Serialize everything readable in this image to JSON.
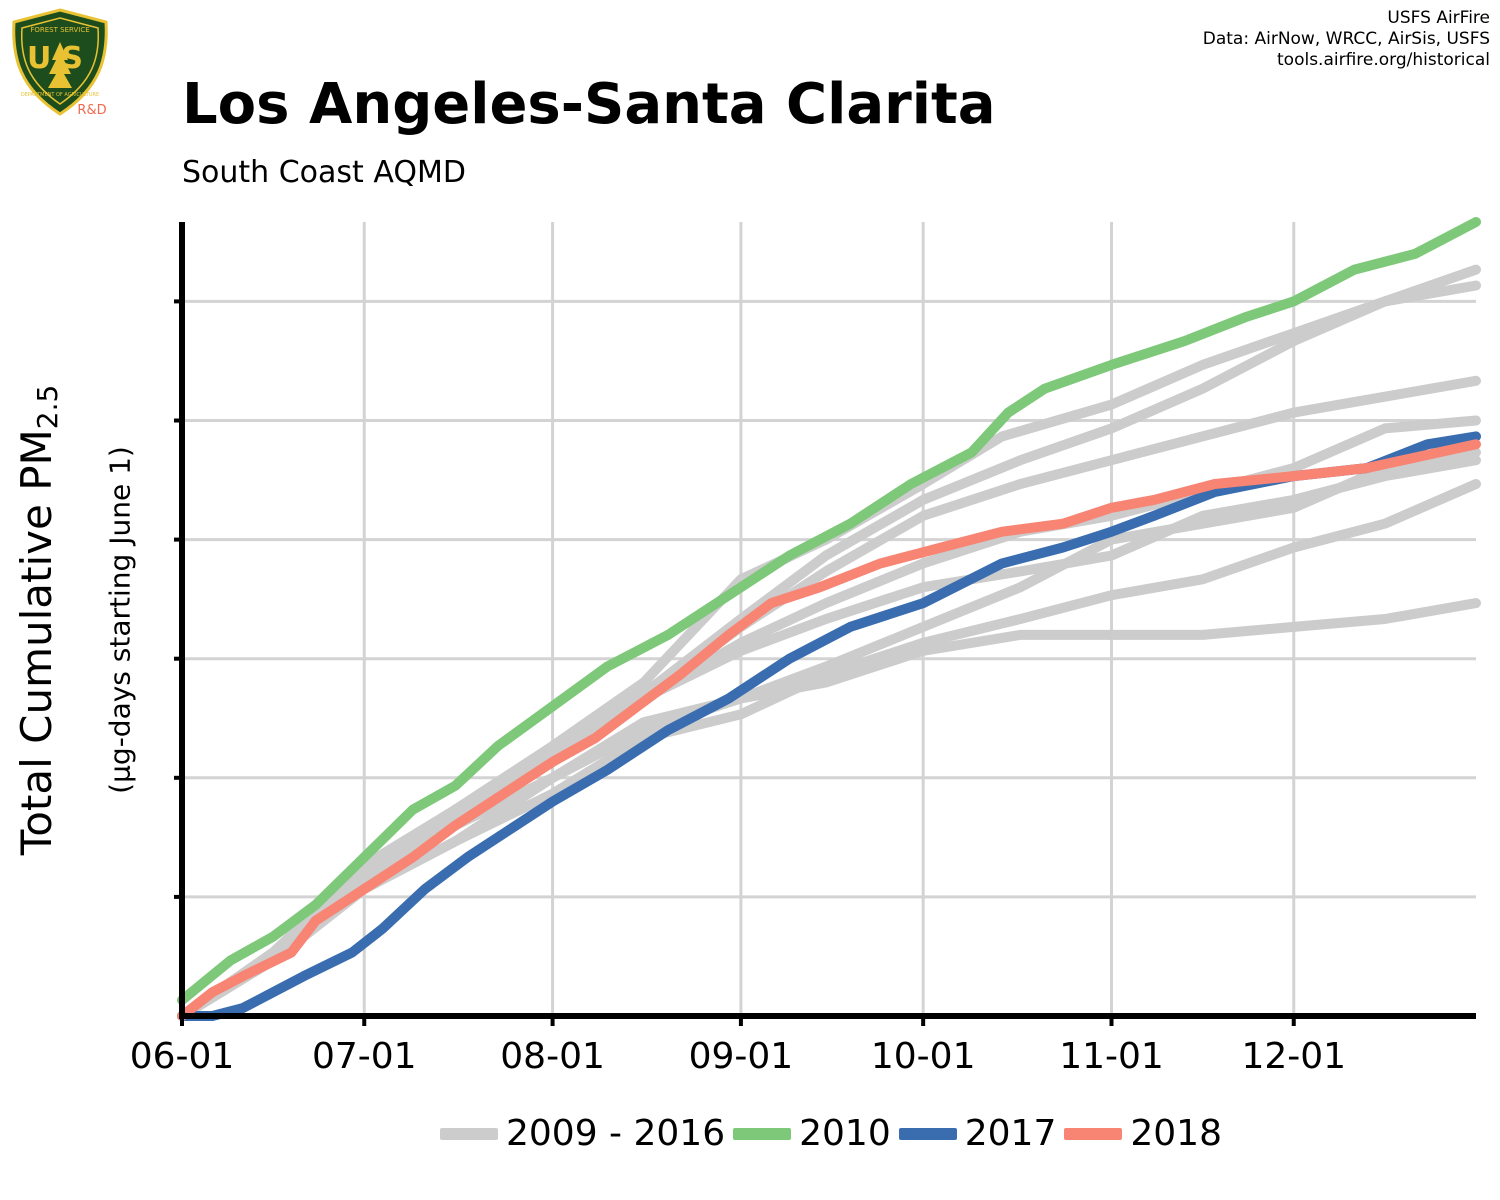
{
  "header": {
    "title": "Los Angeles-Santa Clarita",
    "subtitle": "South Coast AQMD",
    "credits": [
      "USFS AirFire",
      "Data: AirNow, WRCC, AirSis, USFS",
      "tools.airfire.org/historical"
    ],
    "logo": {
      "name": "us-forest-service-shield-icon",
      "text_top": "FOREST SERVICE",
      "text_main": "US",
      "text_bottom": "DEPARTMENT OF AGRICULTURE",
      "tag": "R&D"
    }
  },
  "chart_data": {
    "type": "line",
    "title": "Los Angeles-Santa Clarita",
    "subtitle": "South Coast AQMD",
    "xlabel": "",
    "ylabel": "Total Cumulative PM2.5",
    "ylabel_main": "Total Cumulative PM",
    "ylabel_sub": "2.5",
    "ylabel_note": "(µg-days starting June 1)",
    "x_unit": "days since June 1",
    "x_range": [
      0,
      213
    ],
    "y_range": [
      0,
      100
    ],
    "x_ticks": [
      {
        "label": "06-01",
        "day": 0
      },
      {
        "label": "07-01",
        "day": 30
      },
      {
        "label": "08-01",
        "day": 61
      },
      {
        "label": "09-01",
        "day": 92
      },
      {
        "label": "10-01",
        "day": 122
      },
      {
        "label": "11-01",
        "day": 153
      },
      {
        "label": "12-01",
        "day": 183
      }
    ],
    "y_ticks": [
      15,
      30,
      45,
      60,
      75,
      90
    ],
    "y_tick_labels_shown": false,
    "grid": true,
    "legend_position": "bottom",
    "colors": {
      "gray": "#cccccc",
      "green": "#7ec87a",
      "blue": "#3a6db0",
      "salmon": "#f88474",
      "grid": "#d3d3d3",
      "axis": "#000000",
      "logo_green": "#1d4d1d",
      "logo_gold": "#e8c232",
      "logo_tag": "#f06a50"
    },
    "legend": [
      {
        "label": "2009 - 2016",
        "color": "#cccccc"
      },
      {
        "label": "2010",
        "color": "#7ec87a"
      },
      {
        "label": "2017",
        "color": "#3a6db0"
      },
      {
        "label": "2018",
        "color": "#f88474"
      }
    ],
    "series": [
      {
        "group": "2009 - 2016",
        "color": "#cccccc",
        "points": [
          [
            0,
            0
          ],
          [
            15,
            8
          ],
          [
            30,
            18
          ],
          [
            45,
            26
          ],
          [
            61,
            33
          ],
          [
            75,
            40
          ],
          [
            92,
            50
          ],
          [
            106,
            58
          ],
          [
            122,
            65
          ],
          [
            138,
            70
          ],
          [
            153,
            74
          ],
          [
            168,
            79
          ],
          [
            183,
            85
          ],
          [
            198,
            90
          ],
          [
            213,
            94
          ]
        ]
      },
      {
        "group": "2009 - 2016",
        "color": "#cccccc",
        "points": [
          [
            0,
            0
          ],
          [
            15,
            7
          ],
          [
            30,
            17
          ],
          [
            45,
            24
          ],
          [
            61,
            33
          ],
          [
            76,
            40
          ],
          [
            92,
            49
          ],
          [
            106,
            56
          ],
          [
            122,
            63
          ],
          [
            138,
            67
          ],
          [
            153,
            70
          ],
          [
            168,
            73
          ],
          [
            183,
            76
          ],
          [
            198,
            78
          ],
          [
            213,
            80
          ]
        ]
      },
      {
        "group": "2009 - 2016",
        "color": "#cccccc",
        "points": [
          [
            0,
            0
          ],
          [
            15,
            8
          ],
          [
            30,
            19
          ],
          [
            45,
            26
          ],
          [
            61,
            34
          ],
          [
            76,
            40
          ],
          [
            92,
            47
          ],
          [
            106,
            52
          ],
          [
            122,
            57
          ],
          [
            138,
            61
          ],
          [
            153,
            63
          ],
          [
            168,
            66
          ],
          [
            183,
            69
          ],
          [
            198,
            74
          ],
          [
            213,
            75
          ]
        ]
      },
      {
        "group": "2009 - 2016",
        "color": "#cccccc",
        "points": [
          [
            0,
            0
          ],
          [
            15,
            8
          ],
          [
            30,
            18
          ],
          [
            45,
            25
          ],
          [
            61,
            34
          ],
          [
            76,
            42
          ],
          [
            92,
            55
          ],
          [
            106,
            60
          ],
          [
            122,
            67
          ],
          [
            135,
            73
          ],
          [
            153,
            77
          ],
          [
            168,
            82
          ],
          [
            183,
            86
          ],
          [
            198,
            90
          ],
          [
            213,
            92
          ]
        ]
      },
      {
        "group": "2009 - 2016",
        "color": "#cccccc",
        "points": [
          [
            0,
            0
          ],
          [
            15,
            7
          ],
          [
            30,
            16
          ],
          [
            45,
            22
          ],
          [
            61,
            28
          ],
          [
            76,
            35
          ],
          [
            92,
            38
          ],
          [
            106,
            43
          ],
          [
            122,
            47
          ],
          [
            138,
            50
          ],
          [
            153,
            53
          ],
          [
            168,
            55
          ],
          [
            183,
            59
          ],
          [
            198,
            62
          ],
          [
            213,
            67
          ]
        ]
      },
      {
        "group": "2009 - 2016",
        "color": "#cccccc",
        "points": [
          [
            0,
            0
          ],
          [
            15,
            8
          ],
          [
            30,
            18
          ],
          [
            45,
            24
          ],
          [
            61,
            33
          ],
          [
            76,
            40
          ],
          [
            92,
            46
          ],
          [
            106,
            50
          ],
          [
            122,
            54
          ],
          [
            138,
            56
          ],
          [
            153,
            58
          ],
          [
            168,
            63
          ],
          [
            183,
            65
          ],
          [
            198,
            68
          ],
          [
            213,
            70
          ]
        ]
      },
      {
        "group": "2009 - 2016",
        "color": "#cccccc",
        "points": [
          [
            0,
            0
          ],
          [
            15,
            7
          ],
          [
            30,
            16
          ],
          [
            45,
            22
          ],
          [
            61,
            30
          ],
          [
            76,
            37
          ],
          [
            92,
            40
          ],
          [
            106,
            42
          ],
          [
            122,
            46
          ],
          [
            138,
            48
          ],
          [
            153,
            48
          ],
          [
            168,
            48
          ],
          [
            183,
            49
          ],
          [
            198,
            50
          ],
          [
            213,
            52
          ]
        ]
      },
      {
        "group": "2009 - 2016",
        "color": "#cccccc",
        "points": [
          [
            0,
            0
          ],
          [
            15,
            7
          ],
          [
            30,
            17
          ],
          [
            45,
            24
          ],
          [
            61,
            30
          ],
          [
            76,
            36
          ],
          [
            92,
            40
          ],
          [
            106,
            44
          ],
          [
            122,
            49
          ],
          [
            138,
            54
          ],
          [
            153,
            60
          ],
          [
            168,
            62
          ],
          [
            183,
            64
          ],
          [
            198,
            69
          ],
          [
            213,
            71
          ]
        ]
      },
      {
        "name": "2010",
        "color": "#7ec87a",
        "points": [
          [
            0,
            2
          ],
          [
            8,
            7
          ],
          [
            15,
            10
          ],
          [
            22,
            14
          ],
          [
            30,
            20
          ],
          [
            38,
            26
          ],
          [
            45,
            29
          ],
          [
            52,
            34
          ],
          [
            61,
            39
          ],
          [
            70,
            44
          ],
          [
            80,
            48
          ],
          [
            90,
            53
          ],
          [
            100,
            58
          ],
          [
            110,
            62
          ],
          [
            120,
            67
          ],
          [
            130,
            71
          ],
          [
            136,
            76
          ],
          [
            142,
            79
          ],
          [
            153,
            82
          ],
          [
            165,
            85
          ],
          [
            175,
            88
          ],
          [
            183,
            90
          ],
          [
            193,
            94
          ],
          [
            203,
            96
          ],
          [
            213,
            100
          ]
        ]
      },
      {
        "name": "2017",
        "color": "#3a6db0",
        "points": [
          [
            0,
            0
          ],
          [
            5,
            0
          ],
          [
            10,
            1
          ],
          [
            20,
            5
          ],
          [
            28,
            8
          ],
          [
            33,
            11
          ],
          [
            40,
            16
          ],
          [
            47,
            20
          ],
          [
            55,
            24
          ],
          [
            61,
            27
          ],
          [
            70,
            31
          ],
          [
            80,
            36
          ],
          [
            90,
            40
          ],
          [
            100,
            45
          ],
          [
            110,
            49
          ],
          [
            122,
            52
          ],
          [
            135,
            57
          ],
          [
            145,
            59
          ],
          [
            153,
            61
          ],
          [
            160,
            63
          ],
          [
            170,
            66
          ],
          [
            183,
            68
          ],
          [
            195,
            69
          ],
          [
            205,
            72
          ],
          [
            213,
            73
          ]
        ]
      },
      {
        "name": "2018",
        "color": "#f88474",
        "points": [
          [
            0,
            0
          ],
          [
            5,
            3
          ],
          [
            10,
            5
          ],
          [
            18,
            8
          ],
          [
            22,
            12
          ],
          [
            30,
            16
          ],
          [
            38,
            20
          ],
          [
            45,
            24
          ],
          [
            55,
            29
          ],
          [
            61,
            32
          ],
          [
            68,
            35
          ],
          [
            75,
            39
          ],
          [
            82,
            43
          ],
          [
            90,
            48
          ],
          [
            97,
            52
          ],
          [
            105,
            54
          ],
          [
            115,
            57
          ],
          [
            125,
            59
          ],
          [
            135,
            61
          ],
          [
            145,
            62
          ],
          [
            153,
            64
          ],
          [
            160,
            65
          ],
          [
            170,
            67
          ],
          [
            183,
            68
          ],
          [
            195,
            69
          ],
          [
            213,
            72
          ]
        ]
      }
    ]
  }
}
